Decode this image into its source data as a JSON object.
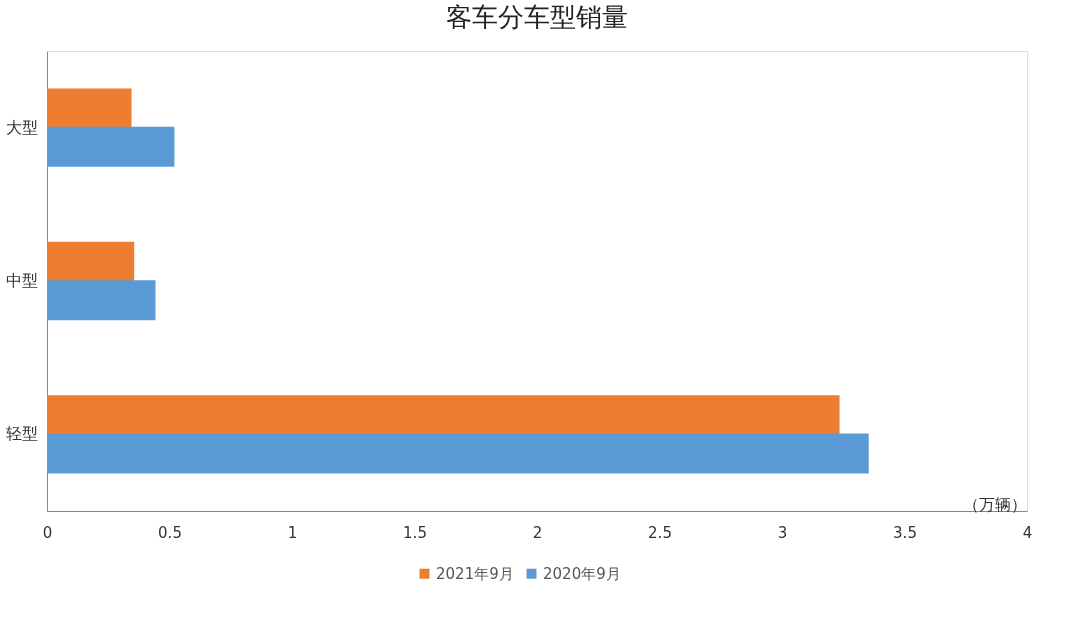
{
  "chart_data": {
    "type": "bar",
    "orientation": "horizontal",
    "title": "客车分车型销量",
    "xlabel": "（万辆）",
    "categories": [
      "大型",
      "中型",
      "轻型"
    ],
    "series": [
      {
        "name": "2021年9月",
        "color": "#ed7d31",
        "values": [
          0.345,
          0.356,
          3.235
        ]
      },
      {
        "name": "2020年9月",
        "color": "#5b9bd5",
        "values": [
          0.52,
          0.443,
          3.354
        ]
      }
    ],
    "xlim": [
      0,
      4
    ],
    "xticks": [
      0,
      0.5,
      1,
      1.5,
      2,
      2.5,
      3,
      3.5,
      4
    ],
    "grid": false,
    "legend": "bottom"
  }
}
